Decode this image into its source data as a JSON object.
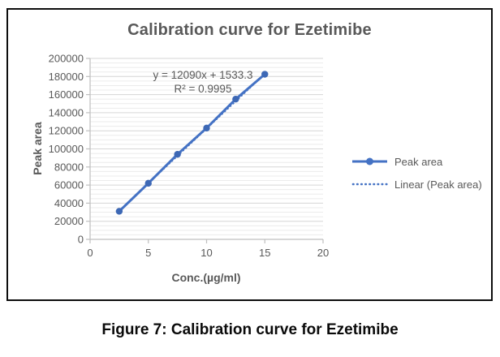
{
  "figure": {
    "caption": "Figure 7: Calibration curve for Ezetimibe"
  },
  "chart_data": {
    "type": "line",
    "title": "Calibration curve for Ezetimibe",
    "xlabel": "Conc.(µg/ml)",
    "ylabel": "Peak area",
    "x": [
      2.5,
      5,
      7.5,
      10,
      12.5,
      15
    ],
    "series": [
      {
        "name": "Peak area",
        "values": [
          31000,
          62000,
          94000,
          123000,
          155000,
          182500
        ]
      }
    ],
    "trendline": {
      "name": "Linear (Peak area)",
      "equation": "y = 12090x + 1533.3",
      "r_squared": "R² = 0.9995",
      "slope": 12090,
      "intercept": 1533.3
    },
    "xlim": [
      0,
      20
    ],
    "ylim": [
      0,
      200000
    ],
    "x_ticks": [
      0,
      5,
      10,
      15,
      20
    ],
    "y_tick_step": 20000,
    "y_minor_step": 5000,
    "grid": "horizontal major+minor",
    "legend_position": "right",
    "legend": [
      "Peak area",
      "Linear (Peak area)"
    ],
    "colors": {
      "series": "#4472C4",
      "trendline": "#4472C4",
      "marker": "#3d68b5",
      "text": "#595959",
      "caption": "#0a0a0a",
      "axis_line": "#bfbfbf",
      "grid_major": "#d6d6d6",
      "grid_minor": "#ebebeb",
      "frame_border": "#0d0d0d"
    }
  }
}
